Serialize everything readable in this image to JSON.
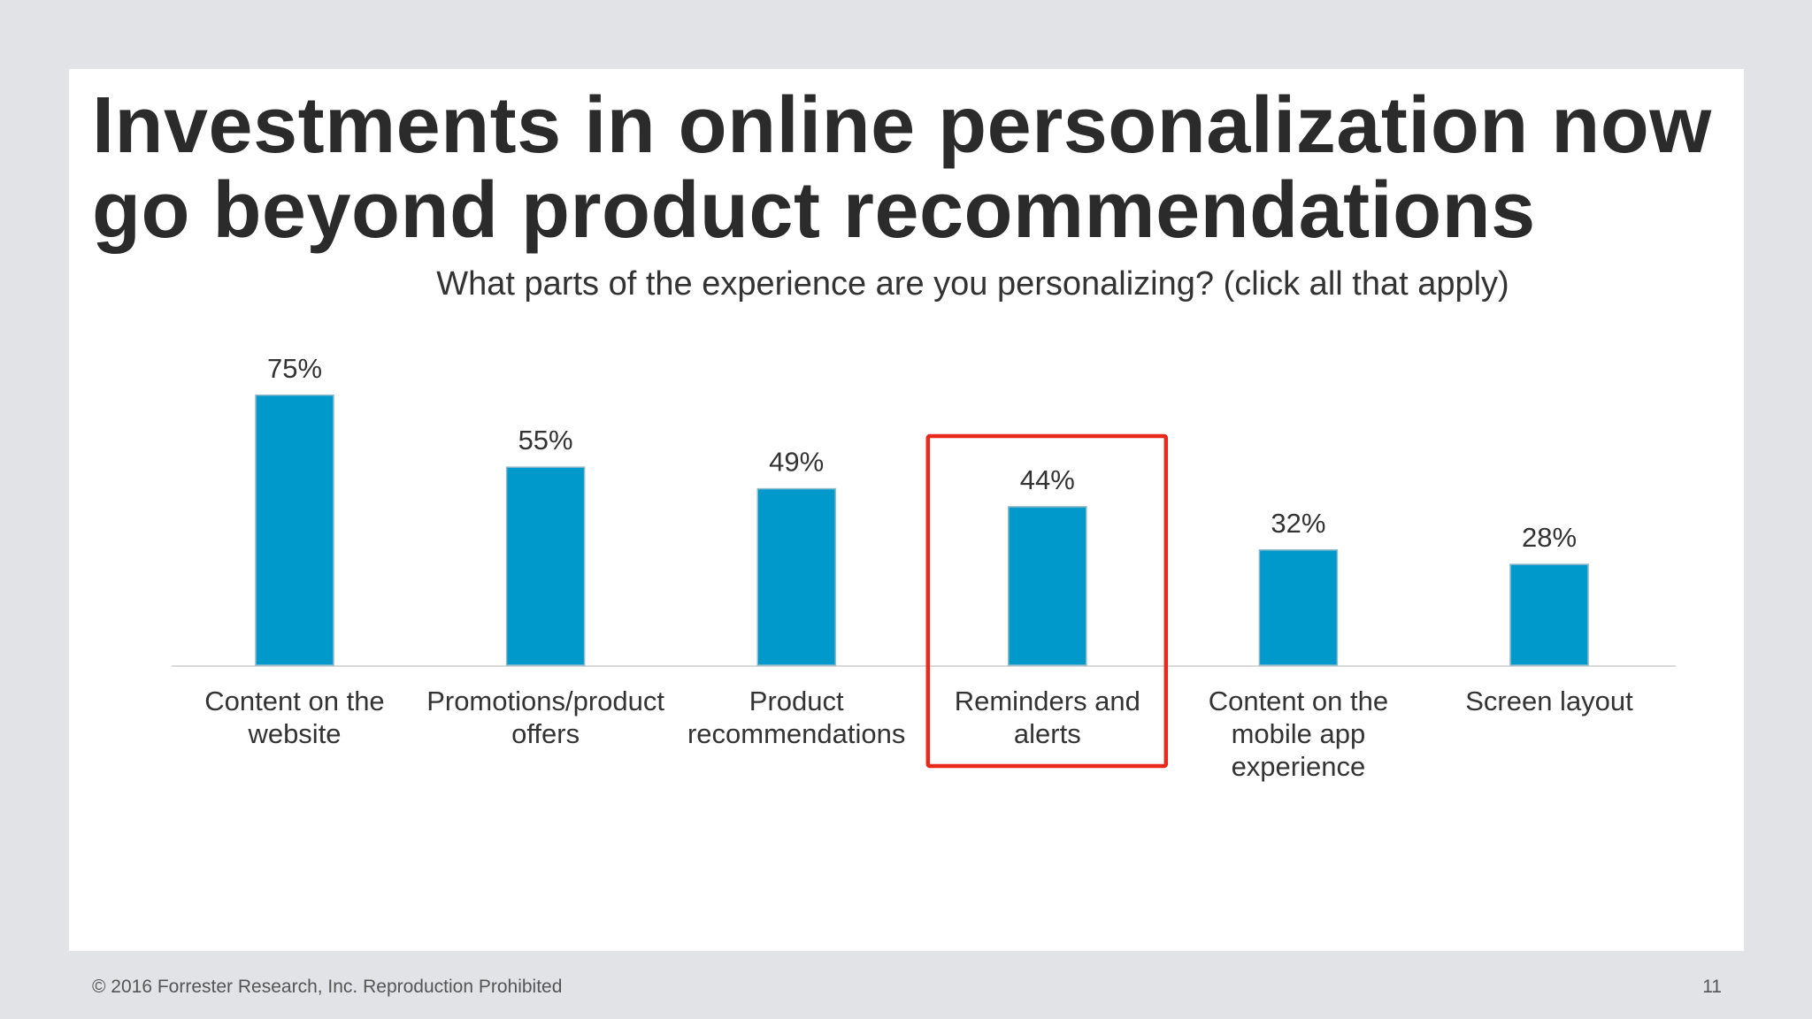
{
  "slide": {
    "title_lines": [
      "Investments in online personalization now",
      "go beyond product recommendations"
    ],
    "subtitle": "What parts of the experience are you personalizing? (click all that apply)"
  },
  "chart_data": {
    "type": "bar",
    "title": "What parts of the experience are you personalizing? (click all that apply)",
    "categories": [
      "Content on the website",
      "Promotions/product offers",
      "Product recommendations",
      "Reminders and alerts",
      "Content on the mobile app experience",
      "Screen layout"
    ],
    "category_label_lines": [
      [
        "Content on the",
        "website"
      ],
      [
        "Promotions/product",
        "offers"
      ],
      [
        "Product",
        "recommendations"
      ],
      [
        "Reminders and",
        "alerts"
      ],
      [
        "Content on the",
        "mobile app",
        "experience"
      ],
      [
        "Screen layout"
      ]
    ],
    "values": [
      75,
      55,
      49,
      44,
      32,
      28
    ],
    "data_labels": [
      "75%",
      "55%",
      "49%",
      "44%",
      "32%",
      "28%"
    ],
    "unit": "%",
    "ylim": [
      0,
      75
    ],
    "grid": false,
    "highlighted_category": "Reminders and alerts",
    "bar_color": "#0099cc",
    "highlight_color": "#e8291c"
  },
  "footer": {
    "copyright": "© 2016 Forrester Research, Inc. Reproduction Prohibited",
    "page_number": "11"
  }
}
